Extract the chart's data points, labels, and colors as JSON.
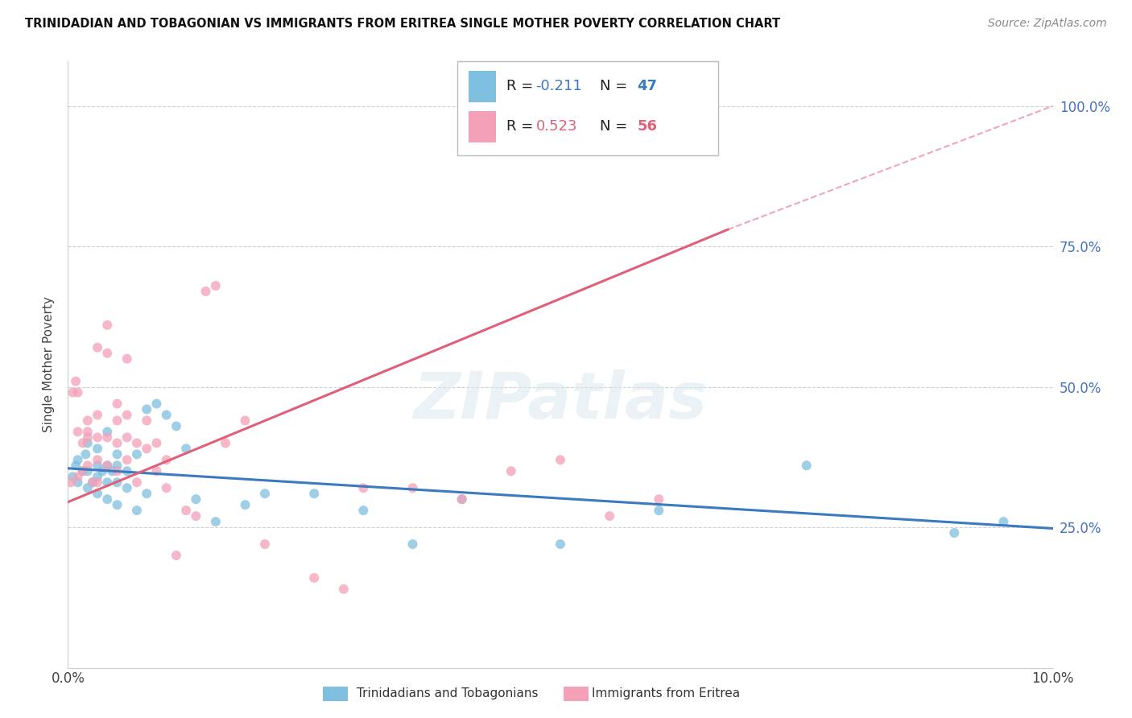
{
  "title": "TRINIDADIAN AND TOBAGONIAN VS IMMIGRANTS FROM ERITREA SINGLE MOTHER POVERTY CORRELATION CHART",
  "source": "Source: ZipAtlas.com",
  "ylabel": "Single Mother Poverty",
  "ytick_labels": [
    "100.0%",
    "75.0%",
    "50.0%",
    "25.0%"
  ],
  "ytick_values": [
    1.0,
    0.75,
    0.5,
    0.25
  ],
  "blue_color": "#7fbfdf",
  "pink_color": "#f4a0b8",
  "blue_line_color": "#3b7abf",
  "pink_line_color": "#e0607a",
  "watermark": "ZIPatlas",
  "blue_R": -0.211,
  "blue_N": 47,
  "pink_R": 0.523,
  "pink_N": 56,
  "blue_line": [
    [
      0.0,
      0.355
    ],
    [
      0.1,
      0.248
    ]
  ],
  "pink_line_solid": [
    [
      0.0,
      0.295
    ],
    [
      0.067,
      0.78
    ]
  ],
  "pink_line_dash": [
    [
      0.067,
      0.78
    ],
    [
      0.1,
      1.0
    ]
  ],
  "blue_scatter_x": [
    0.0005,
    0.0008,
    0.001,
    0.001,
    0.0015,
    0.0018,
    0.002,
    0.002,
    0.002,
    0.0025,
    0.003,
    0.003,
    0.003,
    0.003,
    0.0035,
    0.004,
    0.004,
    0.004,
    0.004,
    0.0045,
    0.005,
    0.005,
    0.005,
    0.005,
    0.006,
    0.006,
    0.007,
    0.007,
    0.008,
    0.008,
    0.009,
    0.01,
    0.011,
    0.012,
    0.013,
    0.015,
    0.018,
    0.02,
    0.025,
    0.03,
    0.035,
    0.04,
    0.05,
    0.06,
    0.075,
    0.09,
    0.095
  ],
  "blue_scatter_y": [
    0.34,
    0.36,
    0.33,
    0.37,
    0.35,
    0.38,
    0.32,
    0.35,
    0.4,
    0.33,
    0.31,
    0.34,
    0.36,
    0.39,
    0.35,
    0.3,
    0.33,
    0.36,
    0.42,
    0.35,
    0.29,
    0.33,
    0.36,
    0.38,
    0.32,
    0.35,
    0.28,
    0.38,
    0.31,
    0.46,
    0.47,
    0.45,
    0.43,
    0.39,
    0.3,
    0.26,
    0.29,
    0.31,
    0.31,
    0.28,
    0.22,
    0.3,
    0.22,
    0.28,
    0.36,
    0.24,
    0.26
  ],
  "pink_scatter_x": [
    0.0003,
    0.0005,
    0.0008,
    0.001,
    0.001,
    0.001,
    0.0015,
    0.0015,
    0.002,
    0.002,
    0.002,
    0.002,
    0.0025,
    0.003,
    0.003,
    0.003,
    0.003,
    0.003,
    0.004,
    0.004,
    0.004,
    0.004,
    0.005,
    0.005,
    0.005,
    0.005,
    0.006,
    0.006,
    0.006,
    0.006,
    0.007,
    0.007,
    0.008,
    0.008,
    0.009,
    0.009,
    0.01,
    0.01,
    0.011,
    0.012,
    0.013,
    0.014,
    0.015,
    0.016,
    0.018,
    0.02,
    0.025,
    0.028,
    0.03,
    0.035,
    0.04,
    0.045,
    0.05,
    0.055,
    0.06,
    0.055
  ],
  "pink_scatter_y": [
    0.33,
    0.49,
    0.51,
    0.34,
    0.42,
    0.49,
    0.35,
    0.4,
    0.41,
    0.44,
    0.36,
    0.42,
    0.33,
    0.33,
    0.37,
    0.41,
    0.45,
    0.57,
    0.36,
    0.41,
    0.56,
    0.61,
    0.35,
    0.4,
    0.44,
    0.47,
    0.37,
    0.41,
    0.45,
    0.55,
    0.33,
    0.4,
    0.39,
    0.44,
    0.35,
    0.4,
    0.32,
    0.37,
    0.2,
    0.28,
    0.27,
    0.67,
    0.68,
    0.4,
    0.44,
    0.22,
    0.16,
    0.14,
    0.32,
    0.32,
    0.3,
    0.35,
    0.37,
    0.27,
    0.3,
    1.0
  ]
}
